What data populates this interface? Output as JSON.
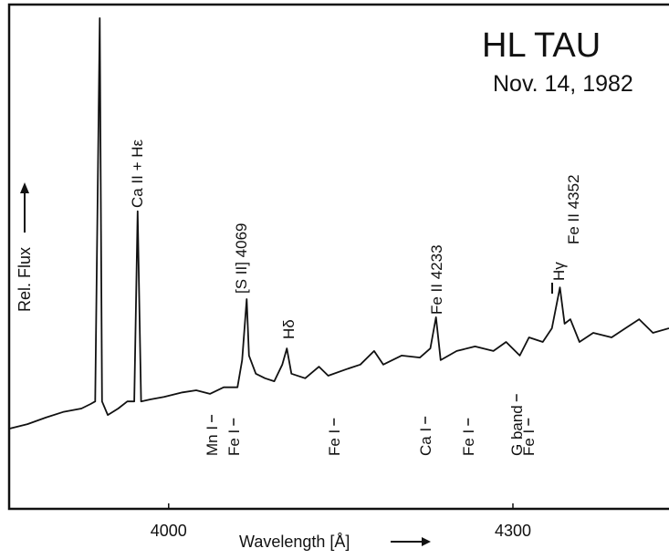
{
  "chart_data": {
    "type": "line",
    "title": "HL TAU",
    "subtitle": "Nov. 14, 1982",
    "x_label": "Wavelength [Å]",
    "y_label": "Rel. Flux",
    "x": [
      3861,
      3877,
      3893,
      3908,
      3924,
      3932,
      3936,
      3940,
      3942,
      3947,
      3956,
      3964,
      3970,
      3973,
      3976,
      3984,
      3996,
      4012,
      4024,
      4036,
      4048,
      4060,
      4064,
      4068,
      4070,
      4076,
      4084,
      4092,
      4099,
      4103,
      4107,
      4119,
      4131,
      4139,
      4155,
      4167,
      4179,
      4187,
      4203,
      4219,
      4228,
      4233,
      4237,
      4251,
      4267,
      4283,
      4294,
      4306,
      4314,
      4326,
      4334,
      4341,
      4345,
      4350,
      4358,
      4370,
      4386,
      4398,
      4410,
      4422,
      4436
    ],
    "values": [
      15.9,
      16.8,
      18.1,
      19.2,
      19.9,
      20.8,
      21.3,
      97.3,
      21.3,
      18.6,
      19.9,
      21.3,
      21.3,
      59.0,
      21.3,
      21.7,
      22.2,
      23.1,
      23.5,
      22.8,
      24.1,
      24.1,
      29.5,
      41.6,
      30.4,
      26.8,
      25.9,
      25.3,
      28.6,
      31.8,
      26.8,
      25.9,
      28.2,
      26.4,
      27.7,
      28.6,
      31.3,
      28.6,
      30.4,
      30.0,
      31.8,
      38.0,
      29.5,
      31.3,
      32.2,
      31.3,
      33.1,
      30.4,
      34.0,
      33.1,
      35.8,
      43.9,
      36.7,
      37.6,
      33.1,
      34.9,
      34.0,
      35.8,
      37.6,
      34.9,
      35.8
    ],
    "color": "#111111",
    "xlim": [
      3861,
      4436
    ],
    "xticks": [
      4000,
      4300
    ],
    "ylim": [
      0,
      100
    ],
    "emission_labels": [
      "Ca II + Hε",
      "[S II] 4069",
      "Hδ",
      "Fe II 4233",
      "Hγ",
      "Fe II 4352"
    ],
    "absorption_labels": [
      "Mn I",
      "Fe I",
      "Fe I",
      "Ca I",
      "Fe I",
      "G band",
      "Fe I"
    ]
  }
}
